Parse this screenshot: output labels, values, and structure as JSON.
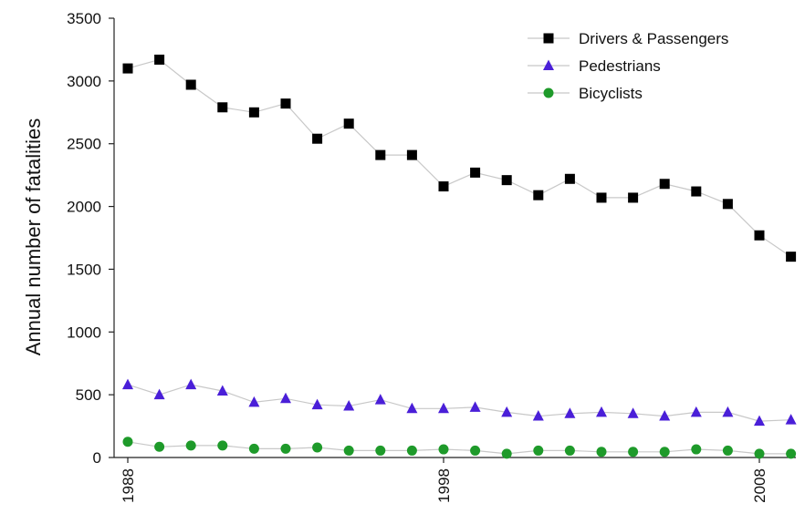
{
  "chart_data": {
    "type": "line",
    "title": "",
    "xlabel": "",
    "ylabel": "Annual number of fatalities",
    "x": [
      1988,
      1989,
      1990,
      1991,
      1992,
      1993,
      1994,
      1995,
      1996,
      1997,
      1998,
      1999,
      2000,
      2001,
      2002,
      2003,
      2004,
      2005,
      2006,
      2007,
      2008,
      2009
    ],
    "xlim": [
      1988,
      2009
    ],
    "x_ticks": [
      1988,
      1998,
      2008
    ],
    "x_tick_labels": [
      "1988",
      "1998",
      "2008"
    ],
    "ylim": [
      0,
      3500
    ],
    "y_ticks": [
      0,
      500,
      1000,
      1500,
      2000,
      2500,
      3000,
      3500
    ],
    "y_tick_labels": [
      "0",
      "500",
      "1000",
      "1500",
      "2000",
      "2500",
      "3000",
      "3500"
    ],
    "grid": false,
    "legend_position": "top-right",
    "series": [
      {
        "name": "Drivers & Passengers",
        "marker": "square",
        "color": "#000000",
        "values": [
          3100,
          3170,
          2970,
          2790,
          2750,
          2820,
          2540,
          2660,
          2410,
          2410,
          2160,
          2270,
          2210,
          2090,
          2220,
          2070,
          2070,
          2180,
          2120,
          2020,
          1770,
          1600
        ]
      },
      {
        "name": "Pedestrians",
        "marker": "triangle",
        "color": "#4a1fd8",
        "values": [
          580,
          500,
          580,
          530,
          440,
          470,
          420,
          410,
          460,
          390,
          390,
          400,
          360,
          330,
          350,
          360,
          350,
          330,
          360,
          360,
          290,
          300
        ]
      },
      {
        "name": "Bicyclists",
        "marker": "circle",
        "color": "#1e9a2a",
        "values": [
          125,
          85,
          95,
          95,
          70,
          70,
          80,
          55,
          55,
          55,
          65,
          55,
          30,
          55,
          55,
          45,
          45,
          45,
          65,
          55,
          30,
          30
        ]
      }
    ]
  }
}
